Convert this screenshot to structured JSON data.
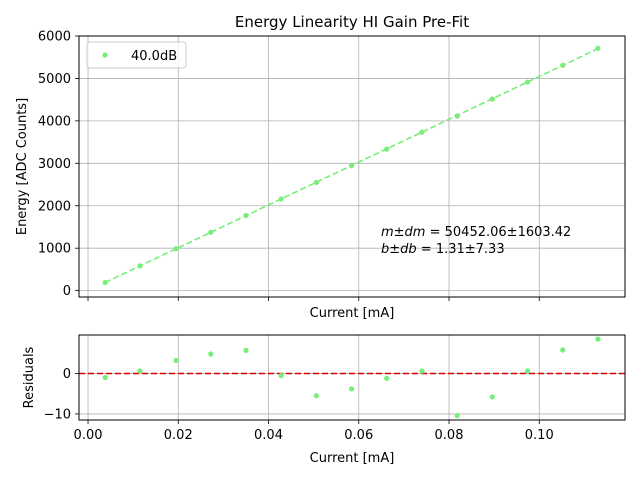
{
  "chart_data": [
    {
      "type": "line",
      "title": "Energy Linearity HI Gain Pre-Fit",
      "xlabel": "Current [mA]",
      "ylabel": "Energy [ADC Counts]",
      "xlim": [
        -0.002,
        0.119
      ],
      "ylim": [
        -150,
        6000
      ],
      "xticks": [
        0.0,
        0.02,
        0.04,
        0.06,
        0.08,
        0.1
      ],
      "xtick_labels_shown": false,
      "yticks": [
        0,
        1000,
        2000,
        3000,
        4000,
        5000,
        6000
      ],
      "ytick_labels": [
        "0",
        "1000",
        "2000",
        "3000",
        "4000",
        "5000",
        "6000"
      ],
      "grid": true,
      "legend": {
        "placement": "upper-left",
        "entries": [
          "40.0dB"
        ]
      },
      "series": [
        {
          "name": "40.0dB",
          "color": "#77ee77",
          "marker": "dot",
          "x": [
            0.0038,
            0.0115,
            0.0195,
            0.0272,
            0.035,
            0.0428,
            0.0506,
            0.0584,
            0.0662,
            0.074,
            0.0818,
            0.0896,
            0.0974,
            0.1052,
            0.113
          ],
          "y": [
            192,
            584,
            988,
            1375,
            1770,
            2160,
            2550,
            2945,
            3335,
            3735,
            4115,
            4515,
            4915,
            5310,
            5710
          ]
        }
      ],
      "fit": {
        "color": "#77ee77",
        "style": "dashed",
        "x": [
          0.0038,
          0.113
        ],
        "y": [
          193,
          5702
        ]
      },
      "annotation": {
        "line1_label": "m±dm",
        "line1_value": " = 50452.06±1603.42",
        "line2_label": "b±db",
        "line2_value": " = 1.31±7.33"
      }
    },
    {
      "type": "scatter",
      "title": "",
      "xlabel": "Current [mA]",
      "ylabel": "Residuals",
      "xlim": [
        -0.002,
        0.119
      ],
      "ylim": [
        -11.5,
        9.5
      ],
      "xticks": [
        0.0,
        0.02,
        0.04,
        0.06,
        0.08,
        0.1
      ],
      "xtick_labels": [
        "0.00",
        "0.02",
        "0.04",
        "0.06",
        "0.08",
        "0.10"
      ],
      "yticks": [
        -10,
        0
      ],
      "ytick_labels": [
        "−10",
        "0"
      ],
      "grid": true,
      "reference_line": {
        "y": 0,
        "color": "#dd0000",
        "style": "dashed"
      },
      "series": [
        {
          "color": "#77ee77",
          "marker": "dot",
          "x": [
            0.0038,
            0.0115,
            0.0195,
            0.0272,
            0.035,
            0.0428,
            0.0506,
            0.0584,
            0.0662,
            0.074,
            0.0818,
            0.0896,
            0.0974,
            0.1052,
            0.113
          ],
          "y": [
            -1.0,
            0.6,
            3.2,
            4.8,
            5.7,
            -0.5,
            -5.5,
            -3.8,
            -1.2,
            0.6,
            -10.4,
            -5.8,
            0.6,
            5.8,
            8.5
          ]
        }
      ]
    }
  ]
}
